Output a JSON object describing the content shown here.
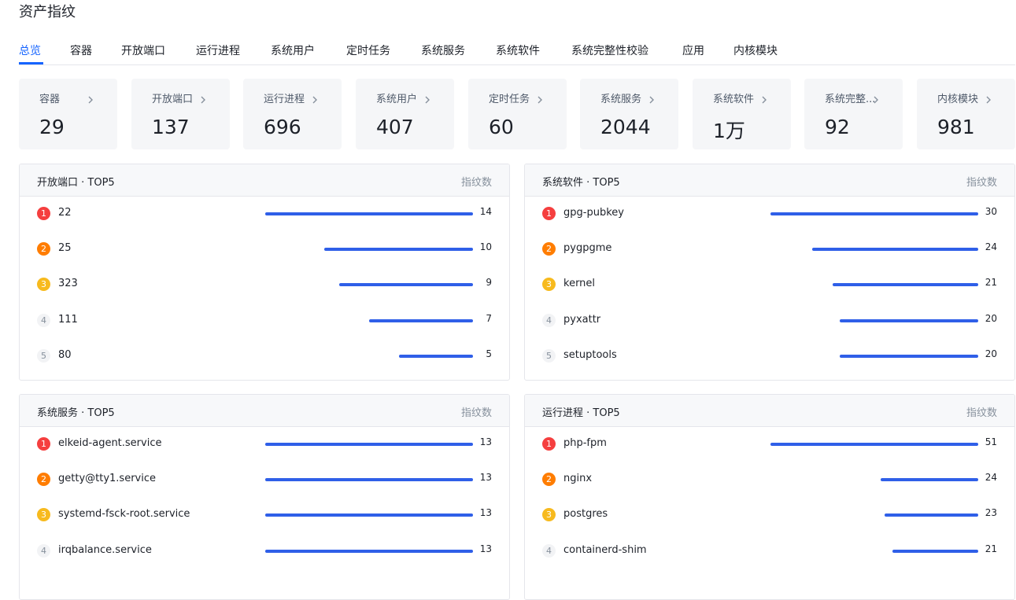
{
  "page_title": "资产指纹",
  "tabs": [
    {
      "label": "总览",
      "active": true
    },
    {
      "label": "容器"
    },
    {
      "label": "开放端口"
    },
    {
      "label": "运行进程"
    },
    {
      "label": "系统用户"
    },
    {
      "label": "定时任务"
    },
    {
      "label": "系统服务"
    },
    {
      "label": "系统软件"
    },
    {
      "label": "系统完整性校验"
    },
    {
      "label": "应用"
    },
    {
      "label": "内核模块"
    }
  ],
  "stats": [
    {
      "label": "容器",
      "value": "29"
    },
    {
      "label": "开放端口",
      "value": "137"
    },
    {
      "label": "运行进程",
      "value": "696"
    },
    {
      "label": "系统用户",
      "value": "407"
    },
    {
      "label": "定时任务",
      "value": "60"
    },
    {
      "label": "系统服务",
      "value": "2044"
    },
    {
      "label": "系统软件",
      "value": "1万"
    },
    {
      "label": "系统完整...",
      "value": "92"
    },
    {
      "label": "内核模块",
      "value": "981"
    }
  ],
  "panels": [
    {
      "title": "开放端口 · TOP5",
      "metric_label": "指纹数",
      "max": 14,
      "items": [
        {
          "rank": "1",
          "name": "22",
          "value": 14
        },
        {
          "rank": "2",
          "name": "25",
          "value": 10
        },
        {
          "rank": "3",
          "name": "323",
          "value": 9
        },
        {
          "rank": "4",
          "name": "111",
          "value": 7
        },
        {
          "rank": "5",
          "name": "80",
          "value": 5
        }
      ]
    },
    {
      "title": "系统软件 · TOP5",
      "metric_label": "指纹数",
      "max": 30,
      "items": [
        {
          "rank": "1",
          "name": "gpg-pubkey",
          "value": 30
        },
        {
          "rank": "2",
          "name": "pygpgme",
          "value": 24
        },
        {
          "rank": "3",
          "name": "kernel",
          "value": 21
        },
        {
          "rank": "4",
          "name": "pyxattr",
          "value": 20
        },
        {
          "rank": "5",
          "name": "setuptools",
          "value": 20
        }
      ]
    },
    {
      "title": "系统服务 · TOP5",
      "metric_label": "指纹数",
      "max": 13,
      "items": [
        {
          "rank": "1",
          "name": "elkeid-agent.service",
          "value": 13
        },
        {
          "rank": "2",
          "name": "getty@tty1.service",
          "value": 13
        },
        {
          "rank": "3",
          "name": "systemd-fsck-root.service",
          "value": 13
        },
        {
          "rank": "4",
          "name": "irqbalance.service",
          "value": 13
        }
      ]
    },
    {
      "title": "运行进程 · TOP5",
      "metric_label": "指纹数",
      "max": 51,
      "items": [
        {
          "rank": "1",
          "name": "php-fpm",
          "value": 51
        },
        {
          "rank": "2",
          "name": "nginx",
          "value": 24
        },
        {
          "rank": "3",
          "name": "postgres",
          "value": 23
        },
        {
          "rank": "4",
          "name": "containerd-shim",
          "value": 21
        }
      ]
    }
  ],
  "colors": {
    "accent": "#1664ff",
    "bar": "#2f5fe8",
    "rank1": "#f53f3f",
    "rank2": "#ff7d00",
    "rank3": "#f7ba1e"
  }
}
